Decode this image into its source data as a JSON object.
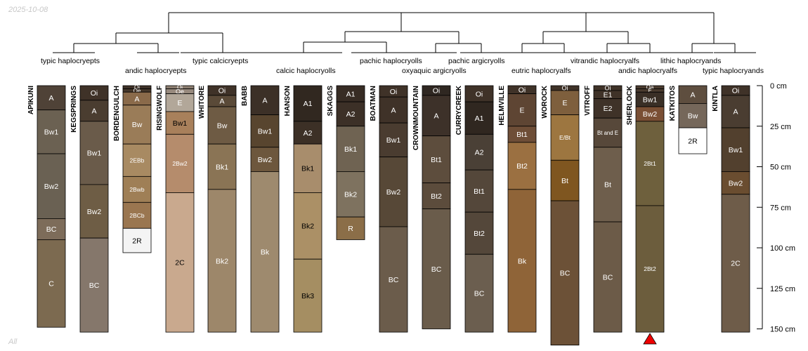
{
  "date_label": "2025-10-08",
  "subset_label": "All",
  "axis": {
    "max_depth": 150,
    "ticks": [
      {
        "depth": 0,
        "label": "0 cm"
      },
      {
        "depth": 25,
        "label": "25 cm"
      },
      {
        "depth": 50,
        "label": "50 cm"
      },
      {
        "depth": 75,
        "label": "75 cm"
      },
      {
        "depth": 100,
        "label": "100 cm"
      },
      {
        "depth": 125,
        "label": "125 cm"
      },
      {
        "depth": 150,
        "label": "150 cm"
      }
    ]
  },
  "taxa": [
    "typic haplocryepts",
    "andic haplocryepts",
    "typic calcicryepts",
    "calcic haplocryolls",
    "pachic haplocryolls",
    "oxyaquic argicryolls",
    "pachic argicryolls",
    "eutric haplocryalfs",
    "vitrandic haplocryalfs",
    "andic haplocryalfs",
    "lithic haplocryands",
    "typic haplocryands"
  ],
  "chart_data": {
    "type": "soil-profile-sketch",
    "depth_units": "cm",
    "profiles": [
      {
        "name": "APIKUNI",
        "horizons": [
          {
            "name": "A",
            "top": 0,
            "bottom": 15,
            "color": "#4f4237",
            "text_color": "#ffffff"
          },
          {
            "name": "Bw1",
            "top": 15,
            "bottom": 42,
            "color": "#6b6152",
            "text_color": "#ffffff"
          },
          {
            "name": "Bw2",
            "top": 42,
            "bottom": 82,
            "color": "#6a6153",
            "text_color": "#ffffff"
          },
          {
            "name": "BC",
            "top": 82,
            "bottom": 95,
            "color": "#7d6c5a",
            "text_color": "#ffffff"
          },
          {
            "name": "C",
            "top": 95,
            "bottom": 149,
            "color": "#7c6a50",
            "text_color": "#ffffff"
          }
        ]
      },
      {
        "name": "KEGSPRINGS",
        "horizons": [
          {
            "name": "Oi",
            "top": 0,
            "bottom": 9,
            "color": "#3f3228",
            "text_color": "#ffffff"
          },
          {
            "name": "A",
            "top": 9,
            "bottom": 22,
            "color": "#4a3d30",
            "text_color": "#ffffff"
          },
          {
            "name": "Bw1",
            "top": 22,
            "bottom": 61,
            "color": "#6a5b4a",
            "text_color": "#ffffff"
          },
          {
            "name": "Bw2",
            "top": 61,
            "bottom": 94,
            "color": "#6e5d45",
            "text_color": "#ffffff"
          },
          {
            "name": "BC",
            "top": 94,
            "bottom": 152,
            "color": "#85776b",
            "text_color": "#ffffff"
          }
        ]
      },
      {
        "name": "BORDENGULCH",
        "horizons": [
          {
            "name": "Oi",
            "top": 0,
            "bottom": 2,
            "color": "#3f3228",
            "text_color": "#ffffff"
          },
          {
            "name": "Oe",
            "top": 2,
            "bottom": 4,
            "color": "#45372b",
            "text_color": "#ffffff"
          },
          {
            "name": "A",
            "top": 4,
            "bottom": 12,
            "color": "#8a6a4a",
            "text_color": "#ffffff"
          },
          {
            "name": "Bw",
            "top": 12,
            "bottom": 36,
            "color": "#9a7c58",
            "text_color": "#ffffff"
          },
          {
            "name": "2EBb",
            "top": 36,
            "bottom": 56,
            "color": "#a88a62",
            "text_color": "#ffffff"
          },
          {
            "name": "2Bwb",
            "top": 56,
            "bottom": 72,
            "color": "#9f7f56",
            "text_color": "#ffffff"
          },
          {
            "name": "2BCb",
            "top": 72,
            "bottom": 88,
            "color": "#9a7650",
            "text_color": "#ffffff"
          },
          {
            "name": "2R",
            "top": 88,
            "bottom": 103,
            "color": "#f4f4f4",
            "text_color": "#000000"
          }
        ]
      },
      {
        "name": "RISINGWOLF",
        "horizons": [
          {
            "name": "Oi",
            "top": 0,
            "bottom": 2,
            "color": "#8b7d70",
            "text_color": "#ffffff"
          },
          {
            "name": "Oe",
            "top": 2,
            "bottom": 5,
            "color": "#97897d",
            "text_color": "#ffffff"
          },
          {
            "name": "E",
            "top": 5,
            "bottom": 16,
            "color": "#b2a799",
            "text_color": "#ffffff"
          },
          {
            "name": "Bw1",
            "top": 16,
            "bottom": 30,
            "color": "#a8805b",
            "text_color": "#000000"
          },
          {
            "name": "2Bw2",
            "top": 30,
            "bottom": 66,
            "color": "#b58c6c",
            "text_color": "#ffffff"
          },
          {
            "name": "2C",
            "top": 66,
            "bottom": 152,
            "color": "#c9a98e",
            "text_color": "#000000"
          }
        ]
      },
      {
        "name": "WHITORE",
        "horizons": [
          {
            "name": "Oi",
            "top": 0,
            "bottom": 6,
            "color": "#3f3228",
            "text_color": "#ffffff"
          },
          {
            "name": "A",
            "top": 6,
            "bottom": 13,
            "color": "#5a4a38",
            "text_color": "#ffffff"
          },
          {
            "name": "Bw",
            "top": 13,
            "bottom": 36,
            "color": "#6e5b44",
            "text_color": "#ffffff"
          },
          {
            "name": "Bk1",
            "top": 36,
            "bottom": 64,
            "color": "#8a7455",
            "text_color": "#ffffff"
          },
          {
            "name": "Bk2",
            "top": 64,
            "bottom": 152,
            "color": "#9d876a",
            "text_color": "#ffffff"
          }
        ]
      },
      {
        "name": "BABB",
        "horizons": [
          {
            "name": "A",
            "top": 0,
            "bottom": 18,
            "color": "#3c3027",
            "text_color": "#ffffff"
          },
          {
            "name": "Bw1",
            "top": 18,
            "bottom": 38,
            "color": "#58452f",
            "text_color": "#ffffff"
          },
          {
            "name": "Bw2",
            "top": 38,
            "bottom": 53,
            "color": "#6d573d",
            "text_color": "#ffffff"
          },
          {
            "name": "Bk",
            "top": 53,
            "bottom": 152,
            "color": "#9e8a6e",
            "text_color": "#ffffff"
          }
        ]
      },
      {
        "name": "HANSON",
        "horizons": [
          {
            "name": "A1",
            "top": 0,
            "bottom": 22,
            "color": "#312820",
            "text_color": "#ffffff"
          },
          {
            "name": "A2",
            "top": 22,
            "bottom": 36,
            "color": "#3c3026",
            "text_color": "#ffffff"
          },
          {
            "name": "Bk1",
            "top": 36,
            "bottom": 66,
            "color": "#a88d6c",
            "text_color": "#000000"
          },
          {
            "name": "Bk2",
            "top": 66,
            "bottom": 107,
            "color": "#ab9066",
            "text_color": "#000000"
          },
          {
            "name": "Bk3",
            "top": 107,
            "bottom": 152,
            "color": "#a58e62",
            "text_color": "#000000"
          }
        ]
      },
      {
        "name": "SKAGGS",
        "horizons": [
          {
            "name": "A1",
            "top": 0,
            "bottom": 10,
            "color": "#372c24",
            "text_color": "#ffffff"
          },
          {
            "name": "A2",
            "top": 10,
            "bottom": 25,
            "color": "#3c3027",
            "text_color": "#ffffff"
          },
          {
            "name": "Bk1",
            "top": 25,
            "bottom": 53,
            "color": "#6f6352",
            "text_color": "#ffffff"
          },
          {
            "name": "Bk2",
            "top": 53,
            "bottom": 81,
            "color": "#7e725f",
            "text_color": "#ffffff"
          },
          {
            "name": "R",
            "top": 81,
            "bottom": 95,
            "color": "#8b6e48",
            "text_color": "#ffffff"
          }
        ]
      },
      {
        "name": "BOATMAN",
        "horizons": [
          {
            "name": "Oi",
            "top": 0,
            "bottom": 7,
            "color": "#3f3228",
            "text_color": "#ffffff"
          },
          {
            "name": "A",
            "top": 7,
            "bottom": 23,
            "color": "#3f3228",
            "text_color": "#ffffff"
          },
          {
            "name": "Bw1",
            "top": 23,
            "bottom": 44,
            "color": "#4a3c30",
            "text_color": "#ffffff"
          },
          {
            "name": "Bw2",
            "top": 44,
            "bottom": 87,
            "color": "#574837",
            "text_color": "#ffffff"
          },
          {
            "name": "BC",
            "top": 87,
            "bottom": 152,
            "color": "#6b5c4b",
            "text_color": "#ffffff"
          }
        ]
      },
      {
        "name": "CROWNMOUNTAIN",
        "horizons": [
          {
            "name": "Oi",
            "top": 0,
            "bottom": 6,
            "color": "#2f2721",
            "text_color": "#ffffff"
          },
          {
            "name": "A",
            "top": 6,
            "bottom": 31,
            "color": "#3d3129",
            "text_color": "#ffffff"
          },
          {
            "name": "Bt1",
            "top": 31,
            "bottom": 60,
            "color": "#5d4d3d",
            "text_color": "#ffffff"
          },
          {
            "name": "Bt2",
            "top": 60,
            "bottom": 76,
            "color": "#5c4c3c",
            "text_color": "#ffffff"
          },
          {
            "name": "BC",
            "top": 76,
            "bottom": 150,
            "color": "#6a5c4b",
            "text_color": "#ffffff"
          }
        ]
      },
      {
        "name": "CURRYCREEK",
        "horizons": [
          {
            "name": "Oi",
            "top": 0,
            "bottom": 10,
            "color": "#3f3228",
            "text_color": "#ffffff"
          },
          {
            "name": "A1",
            "top": 10,
            "bottom": 30,
            "color": "#302720",
            "text_color": "#ffffff"
          },
          {
            "name": "A2",
            "top": 30,
            "bottom": 52,
            "color": "#4a4036",
            "text_color": "#ffffff"
          },
          {
            "name": "Bt1",
            "top": 52,
            "bottom": 78,
            "color": "#54473a",
            "text_color": "#ffffff"
          },
          {
            "name": "Bt2",
            "top": 78,
            "bottom": 104,
            "color": "#54473a",
            "text_color": "#ffffff"
          },
          {
            "name": "BC",
            "top": 104,
            "bottom": 152,
            "color": "#6b5e4f",
            "text_color": "#ffffff"
          }
        ]
      },
      {
        "name": "HELMVILLE",
        "horizons": [
          {
            "name": "Oi",
            "top": 0,
            "bottom": 5,
            "color": "#3f3228",
            "text_color": "#ffffff"
          },
          {
            "name": "E",
            "top": 5,
            "bottom": 25,
            "color": "#5e4533",
            "text_color": "#ffffff"
          },
          {
            "name": "Bt1",
            "top": 25,
            "bottom": 35,
            "color": "#6e4e37",
            "text_color": "#ffffff"
          },
          {
            "name": "Bt2",
            "top": 35,
            "bottom": 64,
            "color": "#9b7041",
            "text_color": "#ffffff"
          },
          {
            "name": "Bk",
            "top": 64,
            "bottom": 152,
            "color": "#8f6438",
            "text_color": "#ffffff"
          }
        ]
      },
      {
        "name": "WOROCK",
        "horizons": [
          {
            "name": "Oi",
            "top": 0,
            "bottom": 3,
            "color": "#3f3228",
            "text_color": "#ffffff"
          },
          {
            "name": "E",
            "top": 3,
            "bottom": 18,
            "color": "#7e5f3d",
            "text_color": "#ffffff"
          },
          {
            "name": "E/Bt",
            "top": 18,
            "bottom": 46,
            "color": "#9d7640",
            "text_color": "#ffffff"
          },
          {
            "name": "Bt",
            "top": 46,
            "bottom": 71,
            "color": "#7f5620",
            "text_color": "#ffffff"
          },
          {
            "name": "BC",
            "top": 71,
            "bottom": 160,
            "color": "#6c5137",
            "text_color": "#ffffff"
          }
        ]
      },
      {
        "name": "VITROFF",
        "horizons": [
          {
            "name": "Oi",
            "top": 0,
            "bottom": 3,
            "color": "#3f3228",
            "text_color": "#ffffff"
          },
          {
            "name": "E1",
            "top": 3,
            "bottom": 8,
            "color": "#3f3228",
            "text_color": "#ffffff"
          },
          {
            "name": "E2",
            "top": 8,
            "bottom": 20,
            "color": "#3f3228",
            "text_color": "#ffffff"
          },
          {
            "name": "Bt and E",
            "top": 20,
            "bottom": 38,
            "color": "#57483a",
            "text_color": "#ffffff"
          },
          {
            "name": "Bt",
            "top": 38,
            "bottom": 84,
            "color": "#6e5e4c",
            "text_color": "#ffffff"
          },
          {
            "name": "BC",
            "top": 84,
            "bottom": 152,
            "color": "#6c5b48",
            "text_color": "#ffffff"
          }
        ]
      },
      {
        "name": "SHERLOCK",
        "horizons": [
          {
            "name": "Oa",
            "top": 0,
            "bottom": 2,
            "color": "#4a3b2e",
            "text_color": "#ffffff"
          },
          {
            "name": "E",
            "top": 2,
            "bottom": 4,
            "color": "#4a3b2e",
            "text_color": "#ffffff"
          },
          {
            "name": "Bw1",
            "top": 4,
            "bottom": 13,
            "color": "#3a2f26",
            "text_color": "#ffffff"
          },
          {
            "name": "Bw2",
            "top": 13,
            "bottom": 22,
            "color": "#7a4f34",
            "text_color": "#ffffff"
          },
          {
            "name": "2Bt1",
            "top": 22,
            "bottom": 74,
            "color": "#6e603d",
            "text_color": "#ffffff"
          },
          {
            "name": "2Bt2",
            "top": 74,
            "bottom": 152,
            "color": "#6c5d3d",
            "text_color": "#ffffff"
          }
        ],
        "truncated_marker": true
      },
      {
        "name": "KATKITOS",
        "horizons": [
          {
            "name": "A",
            "top": 0,
            "bottom": 11,
            "color": "#5e4e3f",
            "text_color": "#ffffff"
          },
          {
            "name": "Bw",
            "top": 11,
            "bottom": 26,
            "color": "#75675a",
            "text_color": "#ffffff"
          },
          {
            "name": "2R",
            "top": 26,
            "bottom": 42,
            "color": "#ffffff",
            "text_color": "#000000"
          }
        ]
      },
      {
        "name": "KINTLA",
        "horizons": [
          {
            "name": "Oi",
            "top": 0,
            "bottom": 6,
            "color": "#3f3228",
            "text_color": "#ffffff"
          },
          {
            "name": "A",
            "top": 6,
            "bottom": 26,
            "color": "#4a3d31",
            "text_color": "#ffffff"
          },
          {
            "name": "Bw1",
            "top": 26,
            "bottom": 53,
            "color": "#52402e",
            "text_color": "#ffffff"
          },
          {
            "name": "Bw2",
            "top": 53,
            "bottom": 67,
            "color": "#6a4d30",
            "text_color": "#ffffff"
          },
          {
            "name": "2C",
            "top": 67,
            "bottom": 152,
            "color": "#6e5c49",
            "text_color": "#ffffff"
          }
        ]
      }
    ]
  }
}
